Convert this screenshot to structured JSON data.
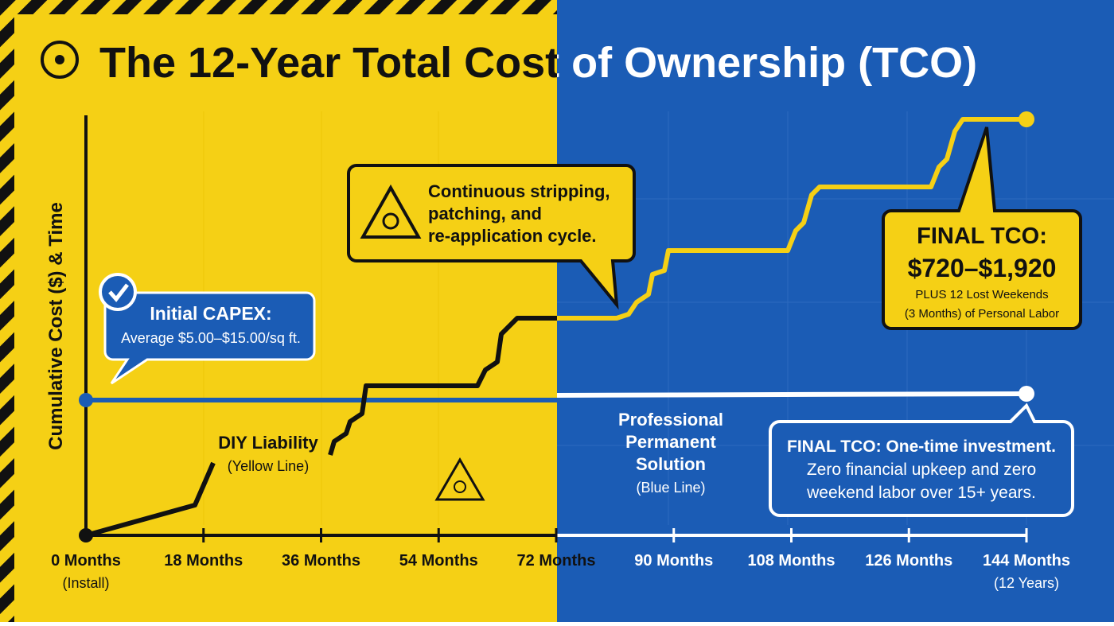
{
  "chart_data": {
    "type": "line",
    "title": "The 12-Year Total Cost of Ownership (TCO)",
    "y_label": "Cumulative Cost ($) & Time",
    "xlim": [
      0,
      144
    ],
    "xticks": [
      {
        "value": 0,
        "label": "0 Months"
      },
      {
        "value": 18,
        "label": "18 Months"
      },
      {
        "value": 36,
        "label": "36 Months"
      },
      {
        "value": 54,
        "label": "54 Months"
      },
      {
        "value": 72,
        "label": "72 Months"
      },
      {
        "value": 90,
        "label": "90 Months"
      },
      {
        "value": 108,
        "label": "108 Months"
      },
      {
        "value": 126,
        "label": "126 Months"
      },
      {
        "value": 144,
        "label": "144 Months"
      }
    ],
    "x_start_note": "(Install)",
    "x_end_note": "(12 Years)",
    "capex": {
      "title": "Initial CAPEX:",
      "text": "Average $5.00–$15.00/sq ft."
    },
    "cycle_note": [
      "Continuous stripping,",
      "patching, and",
      "re-application cycle."
    ],
    "diy_label": {
      "name": "DIY Liability",
      "note": "(Yellow Line)"
    },
    "pro_label": {
      "name": [
        "Professional",
        "Permanent",
        "Solution"
      ],
      "note": "(Blue Line)"
    },
    "diy_final": {
      "title": "FINAL TCO:",
      "amount": "$720–$1,920",
      "lines": [
        "PLUS 12 Lost Weekends",
        "(3 Months) of Personal Labor"
      ]
    },
    "pro_final": [
      "FINAL TCO: One-time investment.",
      "Zero financial upkeep and zero",
      "weekend labor over 15+ years."
    ]
  }
}
